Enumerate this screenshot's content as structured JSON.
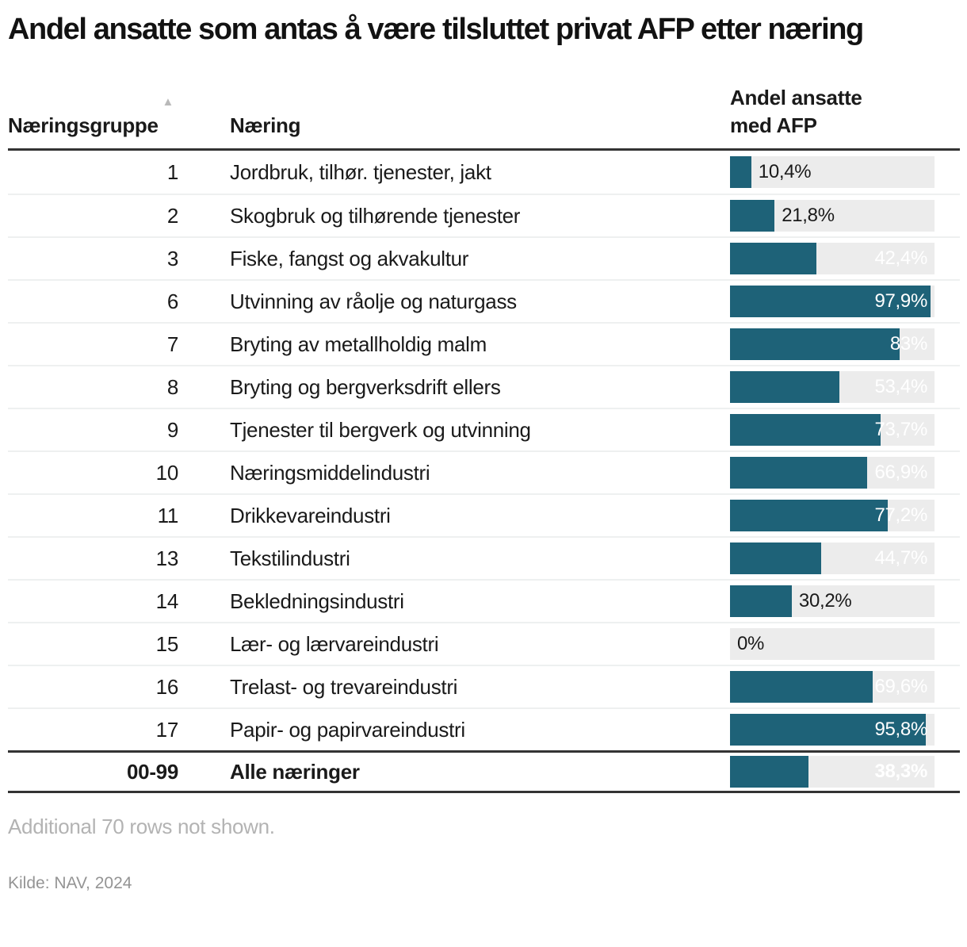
{
  "title": "Andel ansatte som antas å være tilsluttet privat AFP etter næring",
  "sort_icon": "▲",
  "columns": {
    "group": "Næringsgruppe",
    "industry": "Næring",
    "share_line1": "Andel ansatte",
    "share_line2": "med AFP"
  },
  "note": "Additional 70 rows not shown.",
  "source": "Kilde: NAV, 2024",
  "colors": {
    "bar": "#1e6278",
    "track": "#ececec",
    "label_inside": "#ffffff",
    "label_outside": "#1a1a1a"
  },
  "chart_data": {
    "type": "bar",
    "title": "Andel ansatte som antas å være tilsluttet privat AFP etter næring",
    "xlabel": "Andel ansatte med AFP",
    "ylabel": "Næring",
    "xlim": [
      0,
      100
    ],
    "value_unit": "%",
    "legend": "none",
    "rows": [
      {
        "group": "1",
        "industry": "Jordbruk, tilhør. tjenester, jakt",
        "value": 10.4,
        "label": "10,4%",
        "total": false
      },
      {
        "group": "2",
        "industry": "Skogbruk og tilhørende tjenester",
        "value": 21.8,
        "label": "21,8%",
        "total": false
      },
      {
        "group": "3",
        "industry": "Fiske, fangst og akvakultur",
        "value": 42.4,
        "label": "42,4%",
        "total": false
      },
      {
        "group": "6",
        "industry": "Utvinning av råolje og naturgass",
        "value": 97.9,
        "label": "97,9%",
        "total": false
      },
      {
        "group": "7",
        "industry": "Bryting av metallholdig malm",
        "value": 83,
        "label": "83%",
        "total": false
      },
      {
        "group": "8",
        "industry": "Bryting og bergverksdrift ellers",
        "value": 53.4,
        "label": "53,4%",
        "total": false
      },
      {
        "group": "9",
        "industry": "Tjenester til bergverk og utvinning",
        "value": 73.7,
        "label": "73,7%",
        "total": false
      },
      {
        "group": "10",
        "industry": "Næringsmiddelindustri",
        "value": 66.9,
        "label": "66,9%",
        "total": false
      },
      {
        "group": "11",
        "industry": "Drikkevareindustri",
        "value": 77.2,
        "label": "77,2%",
        "total": false
      },
      {
        "group": "13",
        "industry": "Tekstilindustri",
        "value": 44.7,
        "label": "44,7%",
        "total": false
      },
      {
        "group": "14",
        "industry": "Bekledningsindustri",
        "value": 30.2,
        "label": "30,2%",
        "total": false
      },
      {
        "group": "15",
        "industry": "Lær- og lærvareindustri",
        "value": 0,
        "label": "0%",
        "total": false
      },
      {
        "group": "16",
        "industry": "Trelast- og trevareindustri",
        "value": 69.6,
        "label": "69,6%",
        "total": false
      },
      {
        "group": "17",
        "industry": "Papir- og papirvareindustri",
        "value": 95.8,
        "label": "95,8%",
        "total": false
      },
      {
        "group": "00-99",
        "industry": "Alle næringer",
        "value": 38.3,
        "label": "38,3%",
        "total": true
      }
    ]
  }
}
